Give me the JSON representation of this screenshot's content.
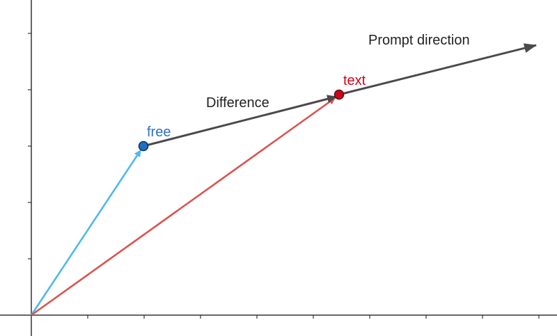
{
  "labels": {
    "free": "free",
    "text": "text",
    "difference": "Difference",
    "prompt_direction": "Prompt direction"
  },
  "colors": {
    "axis": "#333333",
    "free_vector": "#4fb8ee",
    "text_vector": "#d9534f",
    "difference": "#4a4a4a",
    "free_point_fill": "#1f6fc4",
    "text_point_fill": "#d0021b",
    "free_label": "#2b6fc8",
    "text_label": "#d0021b",
    "dark_label": "#222222"
  }
}
